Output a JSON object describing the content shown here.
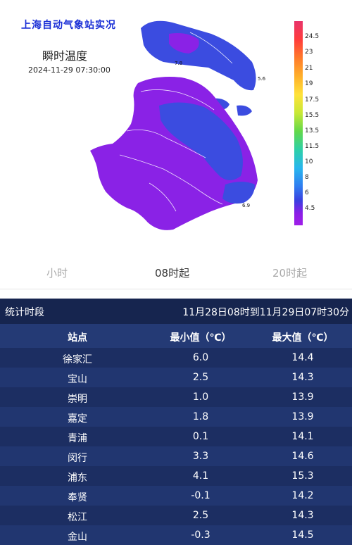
{
  "map": {
    "header": "上海自动气象站实况",
    "title": "瞬时温度",
    "timestamp": "2024-11-29 07:30:00",
    "point_labels": [
      "7.8",
      "5.6",
      "6.9"
    ],
    "legend": {
      "labels": [
        "24.5",
        "23",
        "21",
        "19",
        "17.5",
        "15.5",
        "13.5",
        "11.5",
        "10",
        "8",
        "6",
        "4.5"
      ],
      "colors": [
        "#ff3c3c",
        "#ff7a2a",
        "#ffb02a",
        "#ffe23a",
        "#c8e836",
        "#62d84a",
        "#2ed0a8",
        "#28b6ee",
        "#2f7cf0",
        "#3a3ee0",
        "#8a1ee6",
        "#a01ee8"
      ]
    }
  },
  "tabs": {
    "left": "小时",
    "middle": "08时起",
    "right": "20时起"
  },
  "stats": {
    "period_label": "统计时段",
    "period_value": "11月28日08时到11月29日07时30分",
    "headers": {
      "station": "站点",
      "min": "最小值（℃）",
      "max": "最大值（℃）"
    },
    "rows": [
      {
        "station": "徐家汇",
        "min": "6.0",
        "max": "14.4"
      },
      {
        "station": "宝山",
        "min": "2.5",
        "max": "14.3"
      },
      {
        "station": "崇明",
        "min": "1.0",
        "max": "13.9"
      },
      {
        "station": "嘉定",
        "min": "1.8",
        "max": "13.9"
      },
      {
        "station": "青浦",
        "min": "0.1",
        "max": "14.1"
      },
      {
        "station": "闵行",
        "min": "3.3",
        "max": "14.6"
      },
      {
        "station": "浦东",
        "min": "4.1",
        "max": "15.3"
      },
      {
        "station": "奉贤",
        "min": "-0.1",
        "max": "14.2"
      },
      {
        "station": "松江",
        "min": "2.5",
        "max": "14.3"
      },
      {
        "station": "金山",
        "min": "-0.3",
        "max": "14.5"
      }
    ]
  }
}
